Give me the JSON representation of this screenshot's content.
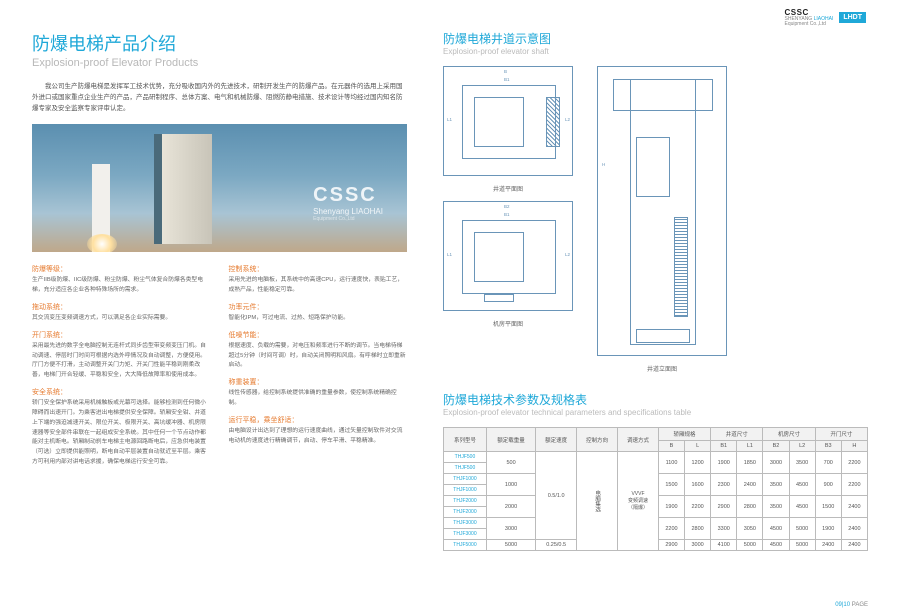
{
  "brand": {
    "cssc": "CSSC",
    "sub1": "SHENYANG",
    "sub2": "LIAOHAI",
    "sub3": "Equipment Co.,Ltd",
    "lhdt": "LHDT"
  },
  "left": {
    "title_cn": "防爆电梯产品介绍",
    "title_en": "Explosion-proof Elevator Products",
    "intro": "我公司生产防爆电梯是发挥军工技术优势，充分吸收国内外的先进技术，研制开发生产的防爆产品。在元器件的选用上采用国外进口或国家重点企业生产的产品，产品研制程序、总体方案、电气和机械防爆、阻燃防静电措施、技术设计等均经过国内知名防爆专家及安全监察专家评审认定。",
    "hero": {
      "lg": "CSSC",
      "md": "Shenyang LIAOHAI",
      "sm": "Equipment Co.,Ltd"
    },
    "features": [
      {
        "col": "left",
        "h": "防爆等级：",
        "b": "生产IIB级防爆、IIC级防爆、粉尘防爆、粉尘气体复合防爆各类型电梯，充分适应各企业各种特殊场所的需求。"
      },
      {
        "col": "left",
        "h": "拖动系统：",
        "b": "其交流变压变频调速方式，可以满足各企业实际需要。"
      },
      {
        "col": "left",
        "h": "开门系统：",
        "b": "采用最先进的数字全电脑控制无连杆式同步齿型带变频变压门机。自动调速、停层时门时间可根据内选外呼情况及自动调整，方便使用。厅门方便不打滑，主动调整开关门力矩、开关门性能平稳到刚柔改善，电梯门开合轻缓、平稳和安全，大大降低故障率和使用成本。"
      },
      {
        "col": "left",
        "h": "安全系统：",
        "b": "轿门安全保护系统采用机械触板或光幕可选择。能够检测到任何微小障碍而出速开门。为乘客进出电梯提供安全保障。轿厢安全钳、井道上下端的强迫减速开关、限位开关、极限开关、高坑缓冲器、机房限速器等安全部件串联在一起组成安全系统。其中任何一个节点动作都能对主机断电。轿厢制动刹车电梯主电源回路断电后，应急供电装置（可选）立即提供能照明，断电自动平层装置自动就近至平层。乘客方可利用内部对讲电话求援，确保电梯运行安全可靠。"
      },
      {
        "col": "right",
        "h": "控制系统：",
        "b": "采用先进的电脑板，其系统中的高速CPU，运行速度快，表贴工艺，成熟产品，性能稳定可靠。"
      },
      {
        "col": "right",
        "h": "功率元件：",
        "b": "智能化IPM，可过电流、过热、短路保护功能。"
      },
      {
        "col": "right",
        "h": "低噪节能：",
        "b": "根据速度、负载的需要，对电压和频率进行不断的调节。当电梯待梯超过5分钟（时间可调）时，自动关闭照明和风扇。有呼梯时立即重新启动。"
      },
      {
        "col": "right",
        "h": "称重装置：",
        "b": "线性传感器，给控制系统提供准确的重量参数，使控制系统精确控制。"
      },
      {
        "col": "right",
        "h": "运行平稳，乘坐舒适：",
        "b": "由电脑设计出达到了理想的运行速度曲线，通过矢量控制软件对交流电动机的速度进行精确调节，启动、停车平滑、平稳精准。"
      }
    ]
  },
  "right": {
    "shaft_title_cn": "防爆电梯井道示意图",
    "shaft_title_en": "Explosion-proof elevator shaft",
    "plan1_label": "井道平面图",
    "plan2_label": "机房平面图",
    "elev_label": "井道立面图",
    "spec_title_cn": "防爆电梯技术参数及规格表",
    "spec_title_en": "Explosion-proof elevator technical parameters and specifications table",
    "headers": [
      "系列型号",
      "额定载重量",
      "额定速度",
      "控制方向",
      "调速方式",
      "轿厢规格",
      "",
      "井道尺寸",
      "",
      "机房尺寸",
      "",
      "开门尺寸",
      ""
    ],
    "sub_headers": [
      "",
      "kg",
      "m/s",
      "",
      "",
      "B",
      "L",
      "B1",
      "L1",
      "B2",
      "L2",
      "B3",
      "H"
    ],
    "models": [
      "THJF500",
      "THJF500",
      "THJF1000",
      "THJF1000",
      "THJF2000",
      "THJF2000",
      "THJF3000",
      "THJF3000",
      "THJF5000"
    ],
    "capacity": [
      "500",
      "",
      "1000",
      "",
      "2000",
      "",
      "3000",
      "",
      "5000"
    ],
    "speed_shared": "0.5/1.0",
    "speed_last": "0.25/0.5",
    "ctrl": "电脑集选",
    "drive": "VVVF\n变频调速\n（隔爆）",
    "rows": [
      [
        "1100",
        "1200",
        "1900",
        "1850",
        "3000",
        "3500",
        "700",
        "2200"
      ],
      [
        "",
        "",
        "",
        "",
        "",
        "",
        "",
        ""
      ],
      [
        "1500",
        "1600",
        "2300",
        "2400",
        "3500",
        "4500",
        "900",
        "2200"
      ],
      [
        "",
        "",
        "",
        "",
        "",
        "",
        "",
        ""
      ],
      [
        "1900",
        "2200",
        "2900",
        "2800",
        "3500",
        "4500",
        "1500",
        "2400"
      ],
      [
        "",
        "",
        "",
        "",
        "",
        "",
        "",
        ""
      ],
      [
        "2200",
        "2800",
        "3300",
        "3050",
        "4500",
        "5000",
        "1900",
        "2400"
      ],
      [
        "",
        "",
        "",
        "",
        "",
        "",
        "",
        ""
      ],
      [
        "2900",
        "3000",
        "4100",
        "5000",
        "4500",
        "5000",
        "2400",
        "2400"
      ]
    ]
  },
  "footer": {
    "pg": "09|10",
    "label": "PAGE"
  }
}
